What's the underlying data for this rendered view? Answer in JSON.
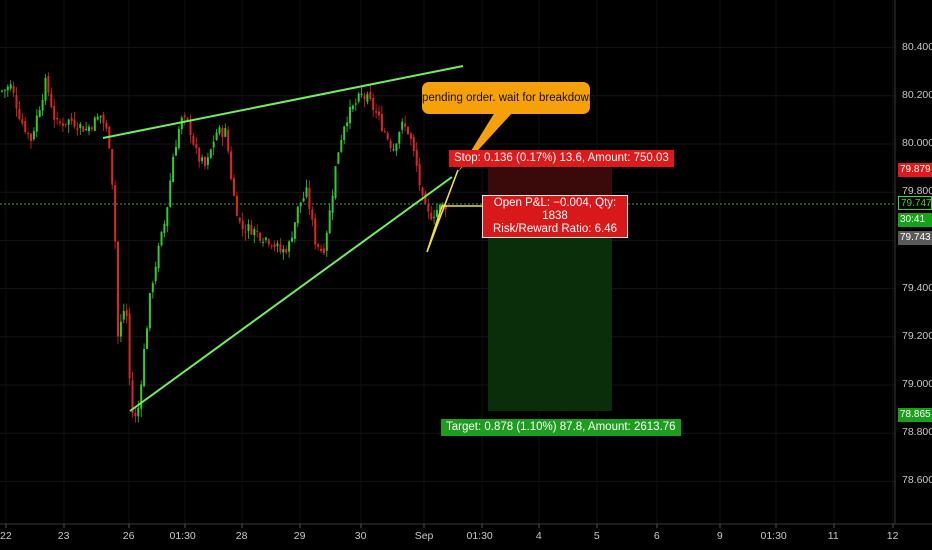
{
  "chart_data": {
    "type": "candlestick",
    "y_ticks": [
      80.4,
      80.2,
      80.0,
      79.8,
      79.6,
      79.4,
      79.2,
      79.0,
      78.8,
      78.6
    ],
    "y_tick_labels": [
      "80.400",
      "80.200",
      "80.000",
      "79.800",
      "79.600",
      "79.400",
      "79.200",
      "79.000",
      "78.800",
      "78.600"
    ],
    "x_tick_labels": [
      "22",
      "23",
      "26",
      "01:30",
      "28",
      "29",
      "30",
      "Sep",
      "01:30",
      "4",
      "5",
      "6",
      "9",
      "01:30",
      "11",
      "12"
    ],
    "badges": {
      "stop_price": "79.879",
      "current_price": "79.747",
      "countdown": "30:41",
      "bid_price": "79.743",
      "target_price": "78.865"
    },
    "callout": "pending order. wait for breakdown",
    "stop_label": "Stop: 0.136 (0.17%) 13.6, Amount: 750.03",
    "pnl_line1": "Open P&L: −0.004, Qty: 1838",
    "pnl_line2": "Risk/Reward Ratio: 6.46",
    "target_label": "Target: 0.878 (1.10%) 87.8, Amount: 2613.76",
    "trend_lines": [
      {
        "name": "upper wedge line",
        "from": [
          "23",
          80.02
        ],
        "to": [
          "01:30 (Sep)",
          80.32
        ]
      },
      {
        "name": "lower wedge line",
        "from": [
          "26",
          78.88
        ],
        "to": [
          "Sep",
          79.88
        ]
      }
    ],
    "position": {
      "entry": 79.747,
      "stop": 79.879,
      "target": 78.865
    },
    "colors": {
      "up_candle": "#2ecc2e",
      "down_candle": "#e02424",
      "trend_line": "#6ef05a",
      "projection_line": "#f0e040",
      "callout_bg": "#f7a10a",
      "stop_zone": "#3a0a0a",
      "target_zone": "#0a2e0a"
    }
  }
}
